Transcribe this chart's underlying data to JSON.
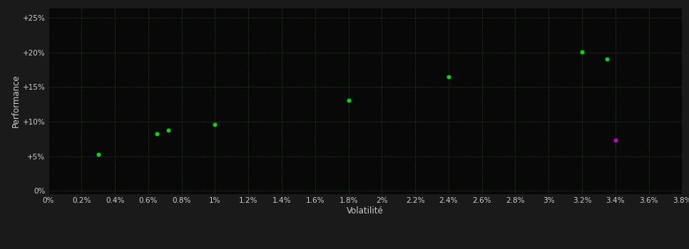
{
  "scatter_green": [
    [
      0.003,
      0.053
    ],
    [
      0.0065,
      0.082
    ],
    [
      0.0072,
      0.088
    ],
    [
      0.01,
      0.096
    ],
    [
      0.018,
      0.131
    ],
    [
      0.024,
      0.165
    ],
    [
      0.032,
      0.201
    ],
    [
      0.0335,
      0.19
    ]
  ],
  "scatter_magenta": [
    [
      0.034,
      0.073
    ]
  ],
  "green_color": "#00dd00",
  "magenta_color": "#cc00cc",
  "background_color": "#1a1a1a",
  "plot_bg_color": "#080808",
  "grid_color": "#2d5a2d",
  "text_color": "#cccccc",
  "xlabel": "Volatilité",
  "ylabel": "Performance",
  "x_ticks": [
    0.0,
    0.002,
    0.004,
    0.006,
    0.008,
    0.01,
    0.012,
    0.014,
    0.016,
    0.018,
    0.02,
    0.022,
    0.024,
    0.026,
    0.028,
    0.03,
    0.032,
    0.034,
    0.036,
    0.038
  ],
  "y_ticks": [
    0.0,
    0.05,
    0.1,
    0.15,
    0.2,
    0.25
  ],
  "xlim": [
    0.0,
    0.038
  ],
  "ylim": [
    -0.005,
    0.265
  ],
  "marker_size": 18
}
